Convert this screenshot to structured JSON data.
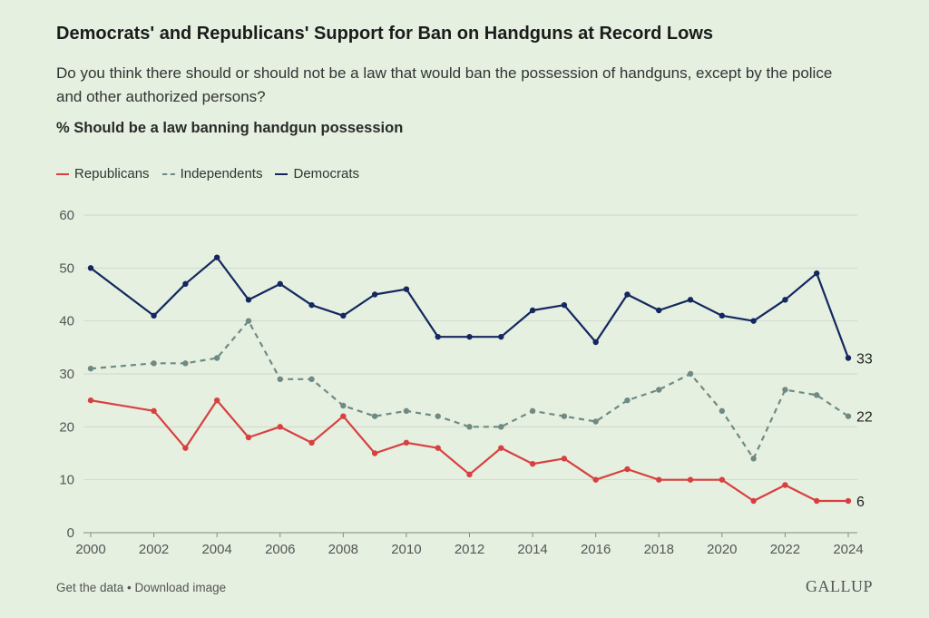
{
  "chart_data": {
    "type": "line",
    "title": "Democrats' and Republicans' Support for Ban on Handguns at Record Lows",
    "subtitle": "Do you think there should or should not be a law that would ban the possession of handguns, except by the police and other authorized persons?",
    "ylabel": "% Should be a law banning handgun possession",
    "xlabel": "",
    "ylim": [
      0,
      60
    ],
    "yticks": [
      0,
      10,
      20,
      30,
      40,
      50,
      60
    ],
    "xlim": [
      2000,
      2024
    ],
    "xticks": [
      2000,
      2002,
      2004,
      2006,
      2008,
      2010,
      2012,
      2014,
      2016,
      2018,
      2020,
      2022,
      2024
    ],
    "grid": true,
    "legend_position": "top-left",
    "x": [
      2000,
      2002,
      2003,
      2004,
      2005,
      2006,
      2007,
      2008,
      2009,
      2010,
      2011,
      2012,
      2013,
      2014,
      2015,
      2016,
      2017,
      2018,
      2019,
      2020,
      2021,
      2022,
      2023,
      2024
    ],
    "series": [
      {
        "name": "Republicans",
        "color": "#d8403f",
        "dashed": false,
        "end_label": "6",
        "values": [
          25,
          23,
          16,
          25,
          18,
          20,
          17,
          22,
          15,
          17,
          16,
          11,
          16,
          13,
          14,
          10,
          12,
          10,
          10,
          10,
          6,
          9,
          6,
          6
        ]
      },
      {
        "name": "Independents",
        "color": "#6f8a84",
        "dashed": true,
        "end_label": "22",
        "values": [
          31,
          32,
          32,
          33,
          40,
          29,
          29,
          24,
          22,
          23,
          22,
          20,
          20,
          23,
          22,
          21,
          25,
          27,
          30,
          23,
          14,
          27,
          26,
          22
        ]
      },
      {
        "name": "Democrats",
        "color": "#14275e",
        "dashed": false,
        "end_label": "33",
        "values": [
          50,
          41,
          47,
          52,
          44,
          47,
          43,
          41,
          45,
          46,
          37,
          37,
          37,
          42,
          43,
          36,
          45,
          42,
          44,
          41,
          40,
          44,
          49,
          33
        ]
      }
    ]
  },
  "footer": {
    "links": "Get the data • Download image",
    "logo": "GALLUP"
  }
}
